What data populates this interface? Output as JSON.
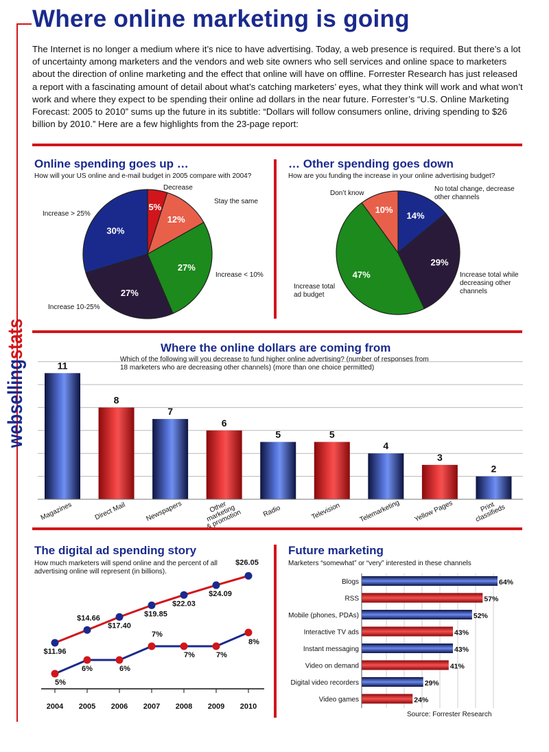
{
  "header": {
    "title": "Where online marketing is going",
    "intro": "The Internet is no longer a medium where it’s nice to have advertising. Today, a web presence is required. But there’s a lot of uncertainty among marketers and the vendors and web site owners who sell services and online space to marketers about the direction of online marketing and the effect that online will have on offline. Forrester Research has just released a report with a fascinating amount of detail about what’s catching marketers’ eyes, what they think will work and what won’t work and where they expect to be spending their online ad dollars in the near future. Forrester’s “U.S. Online Marketing Forecast: 2005 to 2010” sums up the future in its subtitle: “Dollars will follow consumers online, driving spending to $26 billion by 2010.” Here are a few highlights from the 23-page report:"
  },
  "side_label": {
    "part1": "webselling",
    "part2": "stats"
  },
  "colors": {
    "red": "#d0161b",
    "navy": "#1a2a8c",
    "green": "#1c8a1c",
    "dark": "#2a1a3a",
    "salmon": "#e8604a"
  },
  "source": "Source: Forrester Research",
  "chart_data": [
    {
      "type": "pie",
      "title": "Online spending goes up …",
      "subtitle": "How will your US online and e-mail budget in 2005 compare with 2004?",
      "slices": [
        {
          "label": "Decrease",
          "value": 5,
          "display": "5%",
          "color": "#d0161b"
        },
        {
          "label": "Stay the same",
          "value": 12,
          "display": "12%",
          "color": "#e8604a"
        },
        {
          "label": "Increase < 10%",
          "value": 27,
          "display": "27%",
          "color": "#1c8a1c"
        },
        {
          "label": "Increase 10-25%",
          "value": 27,
          "display": "27%",
          "color": "#2a1a3a"
        },
        {
          "label": "Increase > 25%",
          "value": 30,
          "display": "30%",
          "color": "#1a2a8c"
        }
      ]
    },
    {
      "type": "pie",
      "title": "… Other spending goes down",
      "subtitle": "How are you funding the increase in your online advertising budget?",
      "slices": [
        {
          "label": "No total change, decrease other channels",
          "value": 14,
          "display": "14%",
          "color": "#1a2a8c"
        },
        {
          "label": "Increase total while decreasing other channels",
          "value": 29,
          "display": "29%",
          "color": "#2a1a3a"
        },
        {
          "label": "Increase total ad budget",
          "value": 47,
          "display": "47%",
          "color": "#1c8a1c"
        },
        {
          "label": "Don’t know",
          "value": 10,
          "display": "10%",
          "color": "#e8604a"
        }
      ]
    },
    {
      "type": "bar",
      "title": "Where the online dollars are coming from",
      "subtitle": "Which of the following will you decrease to fund higher online advertising? (number of responses from 18 marketers who are decreasing other channels) (more than one choice permitted)",
      "categories": [
        "Magazines",
        "Direct Mail",
        "Newspapers",
        "Other marketing & promotion",
        "Radio",
        "Television",
        "Telemarketing",
        "Yellow Pages",
        "Print classifieds"
      ],
      "values": [
        11,
        8,
        7,
        6,
        5,
        5,
        4,
        3,
        2
      ],
      "bar_colors": [
        "blue",
        "red",
        "blue",
        "red",
        "blue",
        "red",
        "blue",
        "red",
        "blue"
      ],
      "ylim": [
        0,
        12
      ],
      "grid": true
    },
    {
      "type": "line",
      "title": "The digital ad spending story",
      "subtitle": "How much marketers will spend online and the percent of all advertising online will represent (in billions).",
      "x": [
        "2004",
        "2005",
        "2006",
        "2007",
        "2008",
        "2009",
        "2010"
      ],
      "series": [
        {
          "values": [
            11.96,
            14.66,
            17.4,
            19.85,
            22.03,
            24.09,
            26.05
          ],
          "labels": [
            "$11.96",
            "$14.66",
            "$17.40",
            "$19.85",
            "$22.03",
            "$24.09",
            "$26.05"
          ]
        },
        {
          "values": [
            5,
            6,
            6,
            7,
            7,
            7,
            8
          ],
          "labels": [
            "5%",
            "6%",
            "6%",
            "7%",
            "7%",
            "7%",
            "8%"
          ]
        }
      ]
    },
    {
      "type": "bar",
      "orientation": "horizontal",
      "title": "Future marketing",
      "subtitle": "Marketers “somewhat” or “very” interested in these channels",
      "categories": [
        "Blogs",
        "RSS",
        "Mobile (phones, PDAs)",
        "Interactive TV ads",
        "Instant messaging",
        "Video on demand",
        "Digital video recorders",
        "Video games"
      ],
      "values": [
        64,
        57,
        52,
        43,
        43,
        41,
        29,
        24
      ],
      "display": [
        "64%",
        "57%",
        "52%",
        "43%",
        "43%",
        "41%",
        "29%",
        "24%"
      ],
      "bar_colors": [
        "blue",
        "red",
        "blue",
        "red",
        "blue",
        "red",
        "blue",
        "red"
      ],
      "xlim": [
        0,
        64
      ]
    }
  ]
}
